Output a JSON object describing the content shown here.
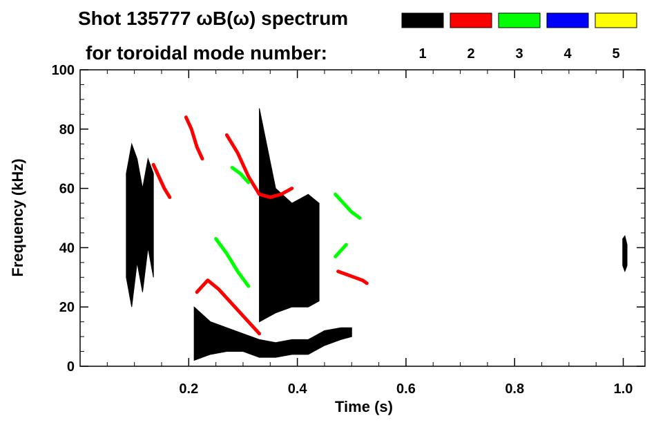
{
  "chart_data": {
    "type": "heatmap",
    "title_line1": "Shot 135777 ωB(ω) spectrum",
    "title_line2": "for toroidal mode number:",
    "xlabel": "Time (s)",
    "ylabel": "Frequency (kHz)",
    "xlim": [
      0.0,
      1.04
    ],
    "ylim": [
      0,
      100
    ],
    "x_ticks": [
      0.2,
      0.4,
      0.6,
      0.8,
      1.0
    ],
    "x_tick_labels": [
      "0.2",
      "0.4",
      "0.6",
      "0.8",
      "1.0"
    ],
    "y_ticks": [
      0,
      20,
      40,
      60,
      80,
      100
    ],
    "y_tick_labels": [
      "0",
      "20",
      "40",
      "60",
      "80",
      "100"
    ],
    "legend": [
      {
        "label": "1",
        "color": "#000000"
      },
      {
        "label": "2",
        "color": "#ff0000"
      },
      {
        "label": "3",
        "color": "#00ff00"
      },
      {
        "label": "4",
        "color": "#0000ff"
      },
      {
        "label": "5",
        "color": "#ffff00"
      }
    ],
    "series": [
      {
        "name": "n=1 low-frequency band",
        "color": "#000000",
        "kind": "band",
        "t": [
          0.21,
          0.24,
          0.27,
          0.3,
          0.33,
          0.36,
          0.39,
          0.42,
          0.45,
          0.48,
          0.5
        ],
        "f_low": [
          2,
          4,
          5,
          5,
          3,
          3,
          4,
          4,
          7,
          9,
          10
        ],
        "f_high": [
          20,
          15,
          13,
          11,
          9,
          8,
          9,
          9,
          12,
          13,
          13
        ]
      },
      {
        "name": "n=1 broadband early",
        "color": "#000000",
        "kind": "band",
        "t": [
          0.085,
          0.095,
          0.105,
          0.115,
          0.125,
          0.135
        ],
        "f_low": [
          30,
          20,
          35,
          25,
          40,
          30
        ],
        "f_high": [
          65,
          75,
          70,
          60,
          70,
          65
        ]
      },
      {
        "name": "n=1 column 0.35-0.43s",
        "color": "#000000",
        "kind": "band",
        "t": [
          0.33,
          0.36,
          0.39,
          0.42,
          0.44
        ],
        "f_low": [
          15,
          18,
          20,
          20,
          22
        ],
        "f_high": [
          87,
          60,
          55,
          58,
          55
        ]
      },
      {
        "name": "n=1 late burst",
        "color": "#000000",
        "kind": "band",
        "t": [
          0.999,
          1.003,
          1.007
        ],
        "f_low": [
          34,
          32,
          34
        ],
        "f_high": [
          43,
          44,
          41
        ]
      },
      {
        "name": "n=2 chirp 0.22-0.33s",
        "color": "#ff0000",
        "kind": "line",
        "t": [
          0.215,
          0.235,
          0.255,
          0.275,
          0.295,
          0.315,
          0.33
        ],
        "f": [
          25,
          29,
          26,
          22,
          18,
          14,
          11
        ]
      },
      {
        "name": "n=2 chirp 0.27-0.39s",
        "color": "#ff0000",
        "kind": "line",
        "t": [
          0.27,
          0.29,
          0.31,
          0.33,
          0.35,
          0.37,
          0.39
        ],
        "f": [
          78,
          72,
          64,
          58,
          57,
          58,
          60
        ]
      },
      {
        "name": "n=2 chirp 0.47-0.53s",
        "color": "#ff0000",
        "kind": "line",
        "t": [
          0.475,
          0.49,
          0.505,
          0.52,
          0.528
        ],
        "f": [
          32,
          31,
          30,
          29,
          28
        ]
      },
      {
        "name": "n=2 early 0.13-0.17s",
        "color": "#ff0000",
        "kind": "line",
        "t": [
          0.135,
          0.145,
          0.155,
          0.165
        ],
        "f": [
          68,
          64,
          60,
          57
        ]
      },
      {
        "name": "n=2 early 0.19-0.22s",
        "color": "#ff0000",
        "kind": "line",
        "t": [
          0.195,
          0.205,
          0.215,
          0.225
        ],
        "f": [
          84,
          80,
          74,
          70
        ]
      },
      {
        "name": "n=3 chirp 0.25-0.33s",
        "color": "#00ff00",
        "kind": "line",
        "t": [
          0.25,
          0.27,
          0.29,
          0.31
        ],
        "f": [
          43,
          38,
          32,
          27
        ]
      },
      {
        "name": "n=3 chirp 0.47-0.52s",
        "color": "#00ff00",
        "kind": "line",
        "t": [
          0.47,
          0.485,
          0.5,
          0.515
        ],
        "f": [
          58,
          55,
          52,
          50
        ]
      },
      {
        "name": "n=3 chirp 0.29-0.31s",
        "color": "#00ff00",
        "kind": "line",
        "t": [
          0.28,
          0.295,
          0.31
        ],
        "f": [
          67,
          65,
          62
        ]
      },
      {
        "name": "n=3 low 0.47-0.49s",
        "color": "#00ff00",
        "kind": "line",
        "t": [
          0.47,
          0.48,
          0.49
        ],
        "f": [
          37,
          39,
          41
        ]
      }
    ]
  }
}
